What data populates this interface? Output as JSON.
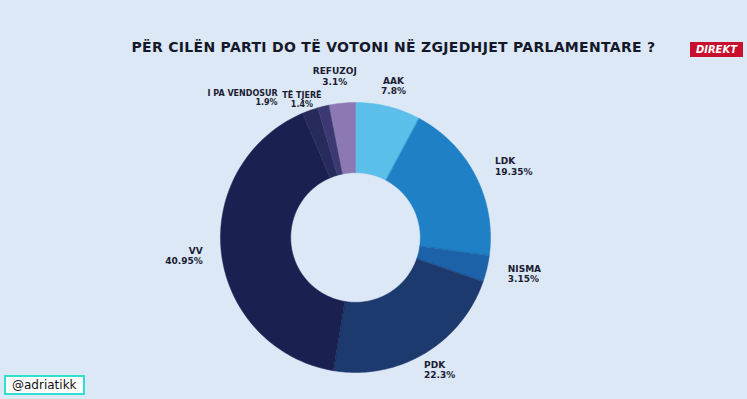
{
  "chart_data": {
    "type": "donut",
    "title": "PËR CILËN PARTI DO TË VOTONI NË ZGJEDHJET PARLAMENTARE ?",
    "categories": [
      "AAK",
      "LDK",
      "NISMA",
      "PDK",
      "VV",
      "I PA VENDOSUR",
      "TË TJERË",
      "REFUZOJ"
    ],
    "values": [
      7.8,
      19.35,
      3.15,
      22.3,
      40.95,
      1.9,
      1.4,
      3.1
    ],
    "value_labels": [
      "7.8%",
      "19.35%",
      "3.15%",
      "22.3%",
      "40.95%",
      "1.9%",
      "1.4%",
      "3.1%"
    ],
    "colors": [
      "#5bbfea",
      "#1f80c6",
      "#1b62a8",
      "#1c3a6e",
      "#1a2050",
      "#272b5c",
      "#3b3872",
      "#8c78b2"
    ],
    "data_labels": true,
    "annotations": [
      "DIREKT",
      "@adriatikk"
    ]
  }
}
